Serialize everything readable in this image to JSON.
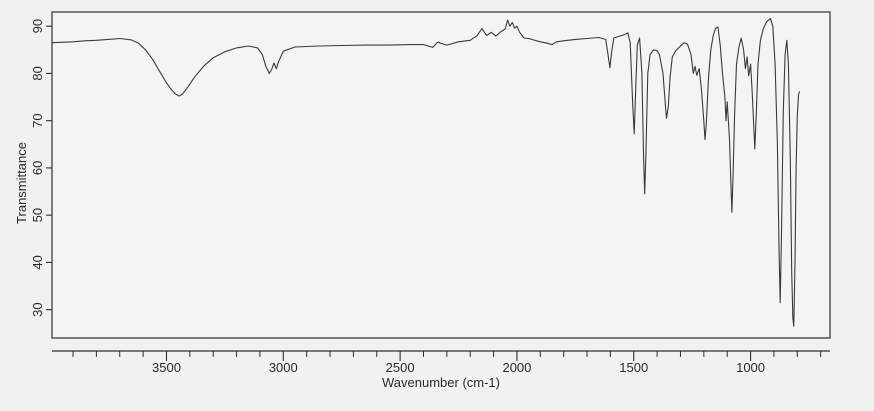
{
  "chart_data": {
    "type": "line",
    "title": "",
    "xlabel": "Wavenumber (cm-1)",
    "ylabel": "Transmittance",
    "xlim": [
      3990,
      660
    ],
    "ylim": [
      24,
      93
    ],
    "x_reversed": true,
    "grid": false,
    "legend": "none",
    "x_ticks": [
      {
        "value": 3500,
        "label": "3500"
      },
      {
        "value": 3000,
        "label": "3000"
      },
      {
        "value": 2500,
        "label": "2500"
      },
      {
        "value": 2000,
        "label": "2000"
      },
      {
        "value": 1500,
        "label": "1500"
      },
      {
        "value": 1000,
        "label": "1000"
      }
    ],
    "x_minor_step": 100,
    "y_ticks": [
      {
        "value": 30,
        "label": "30"
      },
      {
        "value": 40,
        "label": "40"
      },
      {
        "value": 50,
        "label": "50"
      },
      {
        "value": 60,
        "label": "60"
      },
      {
        "value": 70,
        "label": "70"
      },
      {
        "value": 80,
        "label": "80"
      },
      {
        "value": 90,
        "label": "90"
      }
    ],
    "series": [
      {
        "color": "#3a3a3a",
        "points": [
          [
            3990,
            86.5
          ],
          [
            3900,
            86.7
          ],
          [
            3850,
            86.9
          ],
          [
            3800,
            87.0
          ],
          [
            3750,
            87.2
          ],
          [
            3700,
            87.4
          ],
          [
            3650,
            87.1
          ],
          [
            3620,
            86.4
          ],
          [
            3590,
            85.0
          ],
          [
            3560,
            83.0
          ],
          [
            3530,
            80.5
          ],
          [
            3500,
            78.0
          ],
          [
            3480,
            76.6
          ],
          [
            3460,
            75.6
          ],
          [
            3445,
            75.2
          ],
          [
            3430,
            75.7
          ],
          [
            3410,
            77.0
          ],
          [
            3380,
            79.2
          ],
          [
            3340,
            81.6
          ],
          [
            3300,
            83.3
          ],
          [
            3250,
            84.6
          ],
          [
            3200,
            85.4
          ],
          [
            3150,
            85.8
          ],
          [
            3110,
            85.4
          ],
          [
            3090,
            84.0
          ],
          [
            3075,
            81.5
          ],
          [
            3060,
            80.0
          ],
          [
            3050,
            80.8
          ],
          [
            3040,
            82.2
          ],
          [
            3030,
            81.0
          ],
          [
            3020,
            82.5
          ],
          [
            3000,
            84.7
          ],
          [
            2950,
            85.6
          ],
          [
            2850,
            85.8
          ],
          [
            2750,
            85.9
          ],
          [
            2650,
            86.0
          ],
          [
            2550,
            86.0
          ],
          [
            2450,
            86.1
          ],
          [
            2400,
            86.1
          ],
          [
            2360,
            85.5
          ],
          [
            2340,
            86.6
          ],
          [
            2300,
            86.0
          ],
          [
            2250,
            86.7
          ],
          [
            2200,
            87.0
          ],
          [
            2170,
            88.0
          ],
          [
            2150,
            89.5
          ],
          [
            2130,
            88.0
          ],
          [
            2110,
            88.7
          ],
          [
            2090,
            87.9
          ],
          [
            2070,
            88.8
          ],
          [
            2050,
            89.4
          ],
          [
            2040,
            91.3
          ],
          [
            2030,
            90.0
          ],
          [
            2020,
            90.8
          ],
          [
            2010,
            89.6
          ],
          [
            2000,
            90.0
          ],
          [
            1990,
            88.8
          ],
          [
            1970,
            87.5
          ],
          [
            1950,
            87.4
          ],
          [
            1930,
            87.1
          ],
          [
            1900,
            86.7
          ],
          [
            1870,
            86.4
          ],
          [
            1850,
            86.1
          ],
          [
            1830,
            86.7
          ],
          [
            1800,
            86.9
          ],
          [
            1750,
            87.2
          ],
          [
            1700,
            87.4
          ],
          [
            1650,
            87.6
          ],
          [
            1620,
            87.2
          ],
          [
            1610,
            84.0
          ],
          [
            1602,
            81.2
          ],
          [
            1595,
            84.5
          ],
          [
            1585,
            87.5
          ],
          [
            1560,
            87.9
          ],
          [
            1540,
            88.2
          ],
          [
            1525,
            88.6
          ],
          [
            1515,
            86.5
          ],
          [
            1505,
            74.0
          ],
          [
            1498,
            67.2
          ],
          [
            1492,
            76.0
          ],
          [
            1485,
            86.0
          ],
          [
            1475,
            87.5
          ],
          [
            1465,
            80.0
          ],
          [
            1458,
            62.0
          ],
          [
            1453,
            54.5
          ],
          [
            1448,
            63.0
          ],
          [
            1440,
            80.0
          ],
          [
            1430,
            84.0
          ],
          [
            1415,
            85.0
          ],
          [
            1400,
            84.8
          ],
          [
            1390,
            84.0
          ],
          [
            1375,
            80.0
          ],
          [
            1365,
            73.5
          ],
          [
            1360,
            70.5
          ],
          [
            1352,
            73.0
          ],
          [
            1345,
            79.0
          ],
          [
            1335,
            83.5
          ],
          [
            1320,
            84.8
          ],
          [
            1300,
            85.8
          ],
          [
            1285,
            86.5
          ],
          [
            1270,
            86.2
          ],
          [
            1255,
            84.0
          ],
          [
            1245,
            80.0
          ],
          [
            1238,
            81.5
          ],
          [
            1230,
            79.6
          ],
          [
            1220,
            81.0
          ],
          [
            1210,
            76.5
          ],
          [
            1200,
            70.0
          ],
          [
            1195,
            66.0
          ],
          [
            1190,
            69.0
          ],
          [
            1180,
            79.0
          ],
          [
            1170,
            85.0
          ],
          [
            1160,
            88.0
          ],
          [
            1150,
            89.5
          ],
          [
            1140,
            89.8
          ],
          [
            1130,
            86.0
          ],
          [
            1120,
            80.0
          ],
          [
            1110,
            75.0
          ],
          [
            1105,
            70.0
          ],
          [
            1100,
            74.0
          ],
          [
            1090,
            66.0
          ],
          [
            1085,
            58.0
          ],
          [
            1080,
            50.6
          ],
          [
            1075,
            58.0
          ],
          [
            1068,
            72.0
          ],
          [
            1060,
            82.0
          ],
          [
            1050,
            85.5
          ],
          [
            1040,
            87.5
          ],
          [
            1030,
            85.0
          ],
          [
            1022,
            81.0
          ],
          [
            1015,
            83.5
          ],
          [
            1008,
            79.5
          ],
          [
            1000,
            82.0
          ],
          [
            993,
            76.0
          ],
          [
            988,
            70.5
          ],
          [
            982,
            64.0
          ],
          [
            975,
            72.0
          ],
          [
            968,
            82.0
          ],
          [
            958,
            87.0
          ],
          [
            945,
            89.5
          ],
          [
            930,
            91.0
          ],
          [
            915,
            91.6
          ],
          [
            905,
            90.0
          ],
          [
            895,
            82.0
          ],
          [
            885,
            65.0
          ],
          [
            878,
            42.0
          ],
          [
            873,
            31.5
          ],
          [
            868,
            45.0
          ],
          [
            860,
            72.0
          ],
          [
            852,
            84.0
          ],
          [
            845,
            87.0
          ],
          [
            838,
            82.0
          ],
          [
            830,
            62.0
          ],
          [
            824,
            38.0
          ],
          [
            819,
            28.0
          ],
          [
            815,
            26.5
          ],
          [
            810,
            40.0
          ],
          [
            805,
            60.0
          ],
          [
            800,
            71.0
          ],
          [
            795,
            75.5
          ],
          [
            790,
            76.2
          ]
        ]
      }
    ]
  }
}
